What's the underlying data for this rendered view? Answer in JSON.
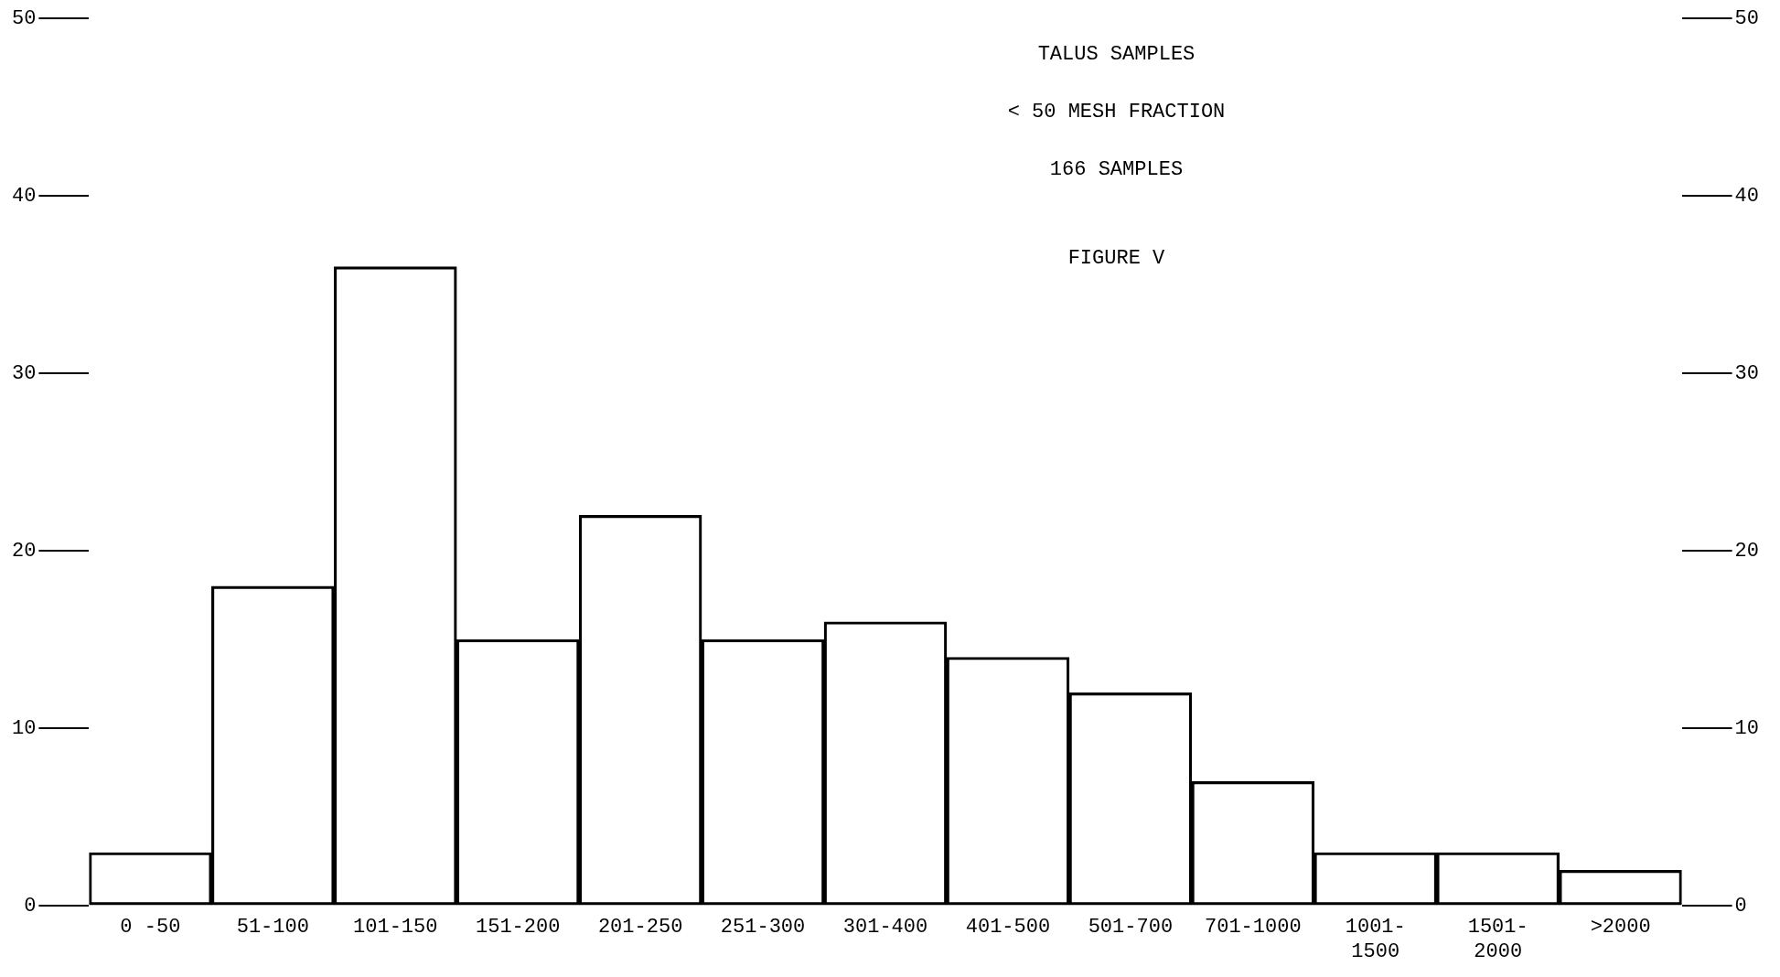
{
  "chart_data": {
    "type": "bar",
    "title": "TALUS SAMPLES",
    "subtitle": "< 50 MESH FRACTION",
    "annotations": [
      "166 SAMPLES",
      "FIGURE V"
    ],
    "categories": [
      "0 -50",
      "51-100",
      "101-150",
      "151-200",
      "201-250",
      "251-300",
      "301-400",
      "401-500",
      "501-700",
      "701-1000",
      "1001-1500",
      "1501-2000",
      ">2000"
    ],
    "values": [
      3,
      18,
      36,
      15,
      22,
      15,
      16,
      14,
      12,
      7,
      3,
      3,
      2
    ],
    "color": "#000000",
    "ylim": [
      0,
      50
    ],
    "yticks": [
      0,
      10,
      20,
      30,
      40,
      50
    ],
    "y2lim": [
      0,
      50
    ],
    "y2ticks": [
      0,
      10,
      20,
      30,
      40,
      50
    ],
    "grid": false,
    "legend": false
  }
}
